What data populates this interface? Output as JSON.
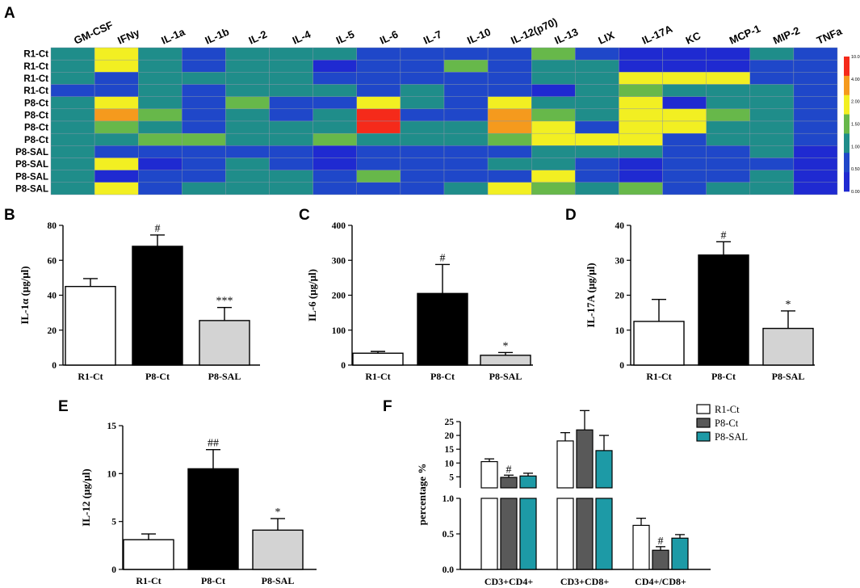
{
  "chart_data": [
    {
      "panel": "A",
      "type": "heatmap",
      "columns": [
        "GM-CSF",
        "IFNy",
        "IL-1a",
        "IL-1b",
        "IL-2",
        "IL-4",
        "IL-5",
        "IL-6",
        "IL-7",
        "IL-10",
        "IL-12(p70)",
        "IL-13",
        "LIX",
        "IL-17A",
        "KC",
        "MCP-1",
        "MIP-2",
        "TNFa"
      ],
      "rows": [
        "R1-Ct",
        "R1-Ct",
        "R1-Ct",
        "R1-Ct",
        "P8-Ct",
        "P8-Ct",
        "P8-Ct",
        "P8-Ct",
        "P8-SAL",
        "P8-SAL",
        "P8-SAL",
        "P8-SAL"
      ],
      "values": [
        [
          1.0,
          3.0,
          1.0,
          0.5,
          1.0,
          1.0,
          1.0,
          0.5,
          0.5,
          0.5,
          0.5,
          1.5,
          0.5,
          0.2,
          0.2,
          0.2,
          1.0,
          0.5
        ],
        [
          1.0,
          3.0,
          1.0,
          0.5,
          1.0,
          1.0,
          0.2,
          0.5,
          0.5,
          1.5,
          0.5,
          1.0,
          1.0,
          0.2,
          0.2,
          0.2,
          0.5,
          0.5
        ],
        [
          1.0,
          0.5,
          1.0,
          1.0,
          1.0,
          1.0,
          0.5,
          0.5,
          0.5,
          0.5,
          0.5,
          1.0,
          1.0,
          3.0,
          3.0,
          3.0,
          0.5,
          0.5
        ],
        [
          0.5,
          0.5,
          1.0,
          0.5,
          1.0,
          1.0,
          1.0,
          0.5,
          1.0,
          0.5,
          0.5,
          0.2,
          1.0,
          1.5,
          1.0,
          1.0,
          1.0,
          0.5
        ],
        [
          1.0,
          3.0,
          1.0,
          0.5,
          1.5,
          0.5,
          0.5,
          3.0,
          1.0,
          0.5,
          3.0,
          1.0,
          1.0,
          3.0,
          0.2,
          1.0,
          1.0,
          0.5
        ],
        [
          1.0,
          5.0,
          1.5,
          0.5,
          1.0,
          0.5,
          1.0,
          12.0,
          0.5,
          0.5,
          5.0,
          1.5,
          1.0,
          3.0,
          3.0,
          1.5,
          1.0,
          0.5
        ],
        [
          1.0,
          1.5,
          1.0,
          0.5,
          1.0,
          1.0,
          1.0,
          12.0,
          1.0,
          1.0,
          5.0,
          3.0,
          0.5,
          3.0,
          3.0,
          1.0,
          1.0,
          0.5
        ],
        [
          1.0,
          1.0,
          1.5,
          1.5,
          1.0,
          1.0,
          1.5,
          1.0,
          1.0,
          1.0,
          1.5,
          3.0,
          3.0,
          3.0,
          0.5,
          1.0,
          1.0,
          0.5
        ],
        [
          1.0,
          0.5,
          0.5,
          0.5,
          0.5,
          0.5,
          0.2,
          0.5,
          0.5,
          0.5,
          0.5,
          1.0,
          1.0,
          1.0,
          0.5,
          0.5,
          1.0,
          0.2
        ],
        [
          1.0,
          3.0,
          0.2,
          0.5,
          1.0,
          0.5,
          0.2,
          0.5,
          0.5,
          0.5,
          1.0,
          1.0,
          0.5,
          0.2,
          0.5,
          0.5,
          0.5,
          0.2
        ],
        [
          1.0,
          0.2,
          0.5,
          0.5,
          1.0,
          1.0,
          0.5,
          1.5,
          0.5,
          0.5,
          0.5,
          3.0,
          0.5,
          0.2,
          0.5,
          0.5,
          1.0,
          0.2
        ],
        [
          1.0,
          3.0,
          0.5,
          1.0,
          1.0,
          1.0,
          0.5,
          0.5,
          0.5,
          1.0,
          3.0,
          1.5,
          1.0,
          1.5,
          0.5,
          1.0,
          1.0,
          0.2
        ]
      ],
      "colorscale": {
        "stops": [
          "0.00",
          "0.50",
          "1.00",
          "1.50",
          "2.00",
          "4.00",
          "10.00"
        ],
        "colors": [
          "#1f2ad1",
          "#1f47c9",
          "#1f8d8a",
          "#67b84a",
          "#f2ef22",
          "#f59a1d",
          "#f52a1a"
        ]
      }
    },
    {
      "panel": "B",
      "type": "bar",
      "categories": [
        "R1-Ct",
        "P8-Ct",
        "P8-SAL"
      ],
      "values": [
        45,
        68,
        25.5
      ],
      "errors": [
        4.5,
        6.5,
        7.5
      ],
      "annotations": [
        "",
        "#",
        "***"
      ],
      "fills": [
        "#ffffff",
        "#000000",
        "#d3d3d3"
      ],
      "ylabel": "IL-1α (μg/μl)",
      "ylim": [
        0,
        80
      ],
      "yticks": [
        "0",
        "20",
        "40",
        "60",
        "80"
      ]
    },
    {
      "panel": "C",
      "type": "bar",
      "categories": [
        "R1-Ct",
        "P8-Ct",
        "P8-SAL"
      ],
      "values": [
        34,
        205,
        28
      ],
      "errors": [
        5,
        83,
        8
      ],
      "annotations": [
        "",
        "#",
        "*"
      ],
      "fills": [
        "#ffffff",
        "#000000",
        "#d3d3d3"
      ],
      "ylabel": "IL-6 (μg/μl)",
      "ylim": [
        0,
        400
      ],
      "yticks": [
        "0",
        "100",
        "200",
        "300",
        "400"
      ]
    },
    {
      "panel": "D",
      "type": "bar",
      "categories": [
        "R1-Ct",
        "P8-Ct",
        "P8-SAL"
      ],
      "values": [
        12.5,
        31.5,
        10.5
      ],
      "errors": [
        6.3,
        3.8,
        5
      ],
      "annotations": [
        "",
        "#",
        "*"
      ],
      "fills": [
        "#ffffff",
        "#000000",
        "#d3d3d3"
      ],
      "ylabel": "IL-17A (μg/μl)",
      "ylim": [
        0,
        40
      ],
      "yticks": [
        "0",
        "10",
        "20",
        "30",
        "40"
      ]
    },
    {
      "panel": "E",
      "type": "bar",
      "categories": [
        "R1-Ct",
        "P8-Ct",
        "P8-SAL"
      ],
      "values": [
        3.1,
        10.5,
        4.1
      ],
      "errors": [
        0.6,
        2.0,
        1.2
      ],
      "annotations": [
        "",
        "##",
        "*"
      ],
      "fills": [
        "#ffffff",
        "#000000",
        "#d3d3d3"
      ],
      "ylabel": "IL-12 (μg/μl)",
      "ylim": [
        0,
        15
      ],
      "yticks": [
        "0",
        "5",
        "10",
        "15"
      ]
    },
    {
      "panel": "F",
      "type": "bar",
      "categories": [
        "CD3+CD4+",
        "CD3+CD8+",
        "CD4+/CD8+"
      ],
      "series": [
        {
          "name": "R1-Ct",
          "color": "#ffffff",
          "values": [
            10.5,
            18,
            0.62
          ],
          "errors": [
            1,
            3,
            0.1
          ]
        },
        {
          "name": "P8-Ct",
          "color": "#595959",
          "values": [
            4.8,
            22,
            0.27
          ],
          "errors": [
            0.8,
            7,
            0.05
          ]
        },
        {
          "name": "P8-SAL",
          "color": "#1d9aa6",
          "values": [
            5.3,
            14.5,
            0.44
          ],
          "errors": [
            1,
            5.5,
            0.05
          ]
        }
      ],
      "annotations": [
        [
          "",
          "#",
          ""
        ],
        [
          "",
          "",
          ""
        ],
        [
          "",
          "#",
          ""
        ]
      ],
      "ylabel": "percentage %",
      "broken_axis": {
        "lower": [
          0,
          1.0
        ],
        "upper": [
          1.0,
          25
        ]
      },
      "yticks_upper": [
        "25",
        "20",
        "15",
        "10",
        "5"
      ],
      "yticks_lower": [
        "0.0",
        "0.5",
        "1.0"
      ],
      "legend": "top-right"
    }
  ]
}
